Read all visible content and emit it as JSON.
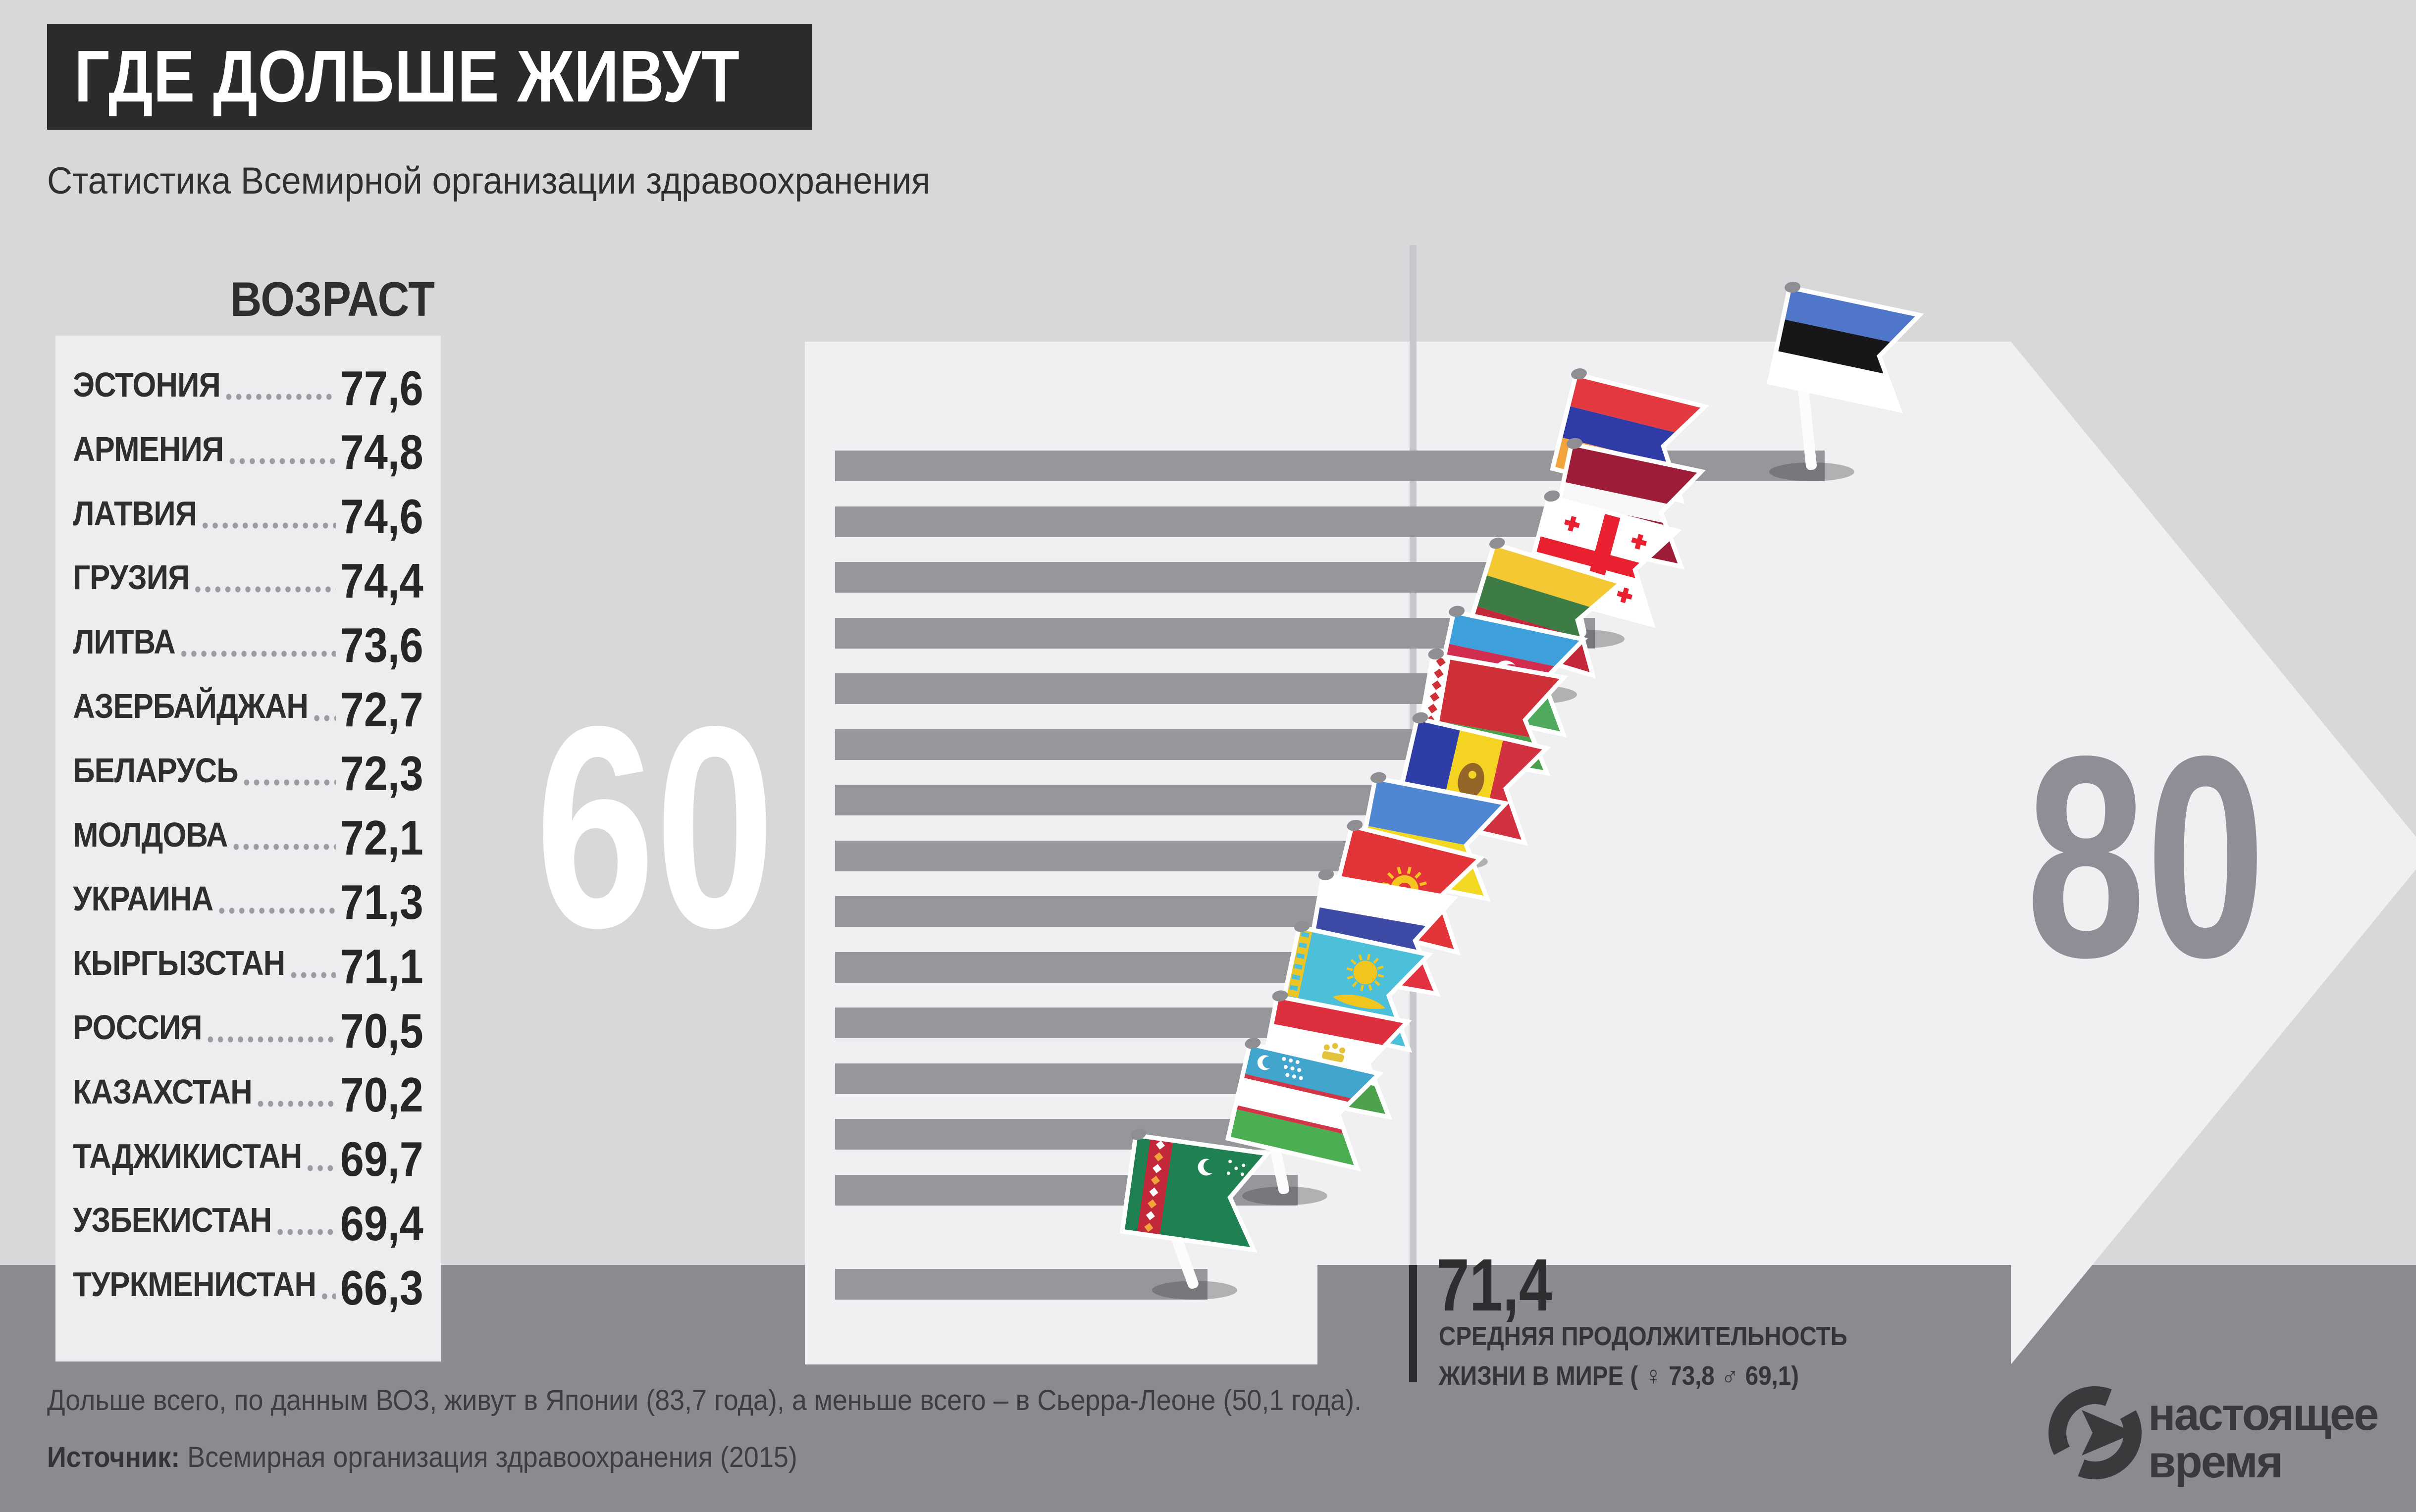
{
  "title": "ГДЕ ДОЛЬШЕ ЖИВУТ",
  "subtitle": "Статистика Всемирной организации здравоохранения",
  "age_header": "ВОЗРАСТ",
  "axis": {
    "min": "60",
    "max": "80"
  },
  "mean": {
    "value": "71,4",
    "line1": "СРЕДНЯЯ ПРОДОЛЖИТЕЛЬНОСТЬ",
    "line2": "ЖИЗНИ В МИРЕ ( ♀ 73,8   ♂ 69,1)"
  },
  "footer": {
    "note": "Дольше всего, по данным ВОЗ, живут в Японии (83,7 года), а меньше всего – в Сьерра-Леоне (50,1 года).",
    "source_label": "Источник:",
    "source_text": " Всемирная организация здравоохранения (2015)"
  },
  "logo": {
    "line1": "настоящее",
    "line2": "время"
  },
  "colors": {
    "background": "#d8d8da",
    "band": "#8b8b8f",
    "panel": "#ededef",
    "arrow_panel": "#f0f0f2",
    "bar": "#97979b",
    "title_box": "#2b2b2d",
    "text_dark": "#2e2e30",
    "mean_line_light": "#c8c8cc",
    "mean_line_dark": "#2d2d2f",
    "numeral_60": "#ffffff",
    "numeral_80": "#8e8e96"
  },
  "countries": [
    {
      "key": "estonia",
      "name": "ЭСТОНИЯ",
      "value": "77,6",
      "num": 77.6,
      "flag": {
        "dir": "h",
        "stripes": [
          {
            "c": "#4f76c9",
            "r": 1
          },
          {
            "c": "#17171a",
            "r": 1
          },
          {
            "c": "#ffffff",
            "r": 1
          }
        ]
      }
    },
    {
      "key": "armenia",
      "name": "АРМЕНИЯ",
      "value": "74,8",
      "num": 74.8,
      "flag": {
        "dir": "h",
        "stripes": [
          {
            "c": "#e23a40",
            "r": 1
          },
          {
            "c": "#2f3ba6",
            "r": 1
          },
          {
            "c": "#f2a33c",
            "r": 1
          }
        ]
      }
    },
    {
      "key": "latvia",
      "name": "ЛАТВИЯ",
      "value": "74,6",
      "num": 74.6,
      "flag": {
        "dir": "h",
        "stripes": [
          {
            "c": "#9d1c37",
            "r": 2
          },
          {
            "c": "#f7f7f7",
            "r": 1
          },
          {
            "c": "#9d1c37",
            "r": 2
          }
        ]
      }
    },
    {
      "key": "georgia",
      "name": "ГРУЗИЯ",
      "value": "74,4",
      "num": 74.4,
      "flag": {
        "dir": "h",
        "stripes": [
          {
            "c": "#ffffff",
            "r": 1
          }
        ],
        "extra": "georgia",
        "extraColor": "#e8202f"
      }
    },
    {
      "key": "lithuania",
      "name": "ЛИТВА",
      "value": "73,6",
      "num": 73.6,
      "flag": {
        "dir": "h",
        "stripes": [
          {
            "c": "#f4c832",
            "r": 1
          },
          {
            "c": "#3e7c46",
            "r": 1
          },
          {
            "c": "#c3273a",
            "r": 1
          }
        ]
      }
    },
    {
      "key": "azerbaijan",
      "name": "АЗЕРБАЙДЖАН",
      "value": "72,7",
      "num": 72.7,
      "flag": {
        "dir": "h",
        "stripes": [
          {
            "c": "#3ea0da",
            "r": 1
          },
          {
            "c": "#d02d50",
            "r": 1
          },
          {
            "c": "#50aa5e",
            "r": 1
          }
        ],
        "extra": "azerbaijan"
      }
    },
    {
      "key": "belarus",
      "name": "БЕЛАРУСЬ",
      "value": "72,3",
      "num": 72.3,
      "flag": {
        "dir": "h",
        "stripes": [
          {
            "c": "#cf3038",
            "r": 2
          },
          {
            "c": "#4ba04e",
            "r": 1
          }
        ],
        "extra": "belarus",
        "extraColor": "#cf3038"
      }
    },
    {
      "key": "moldova",
      "name": "МОЛДОВА",
      "value": "72,1",
      "num": 72.1,
      "flag": {
        "dir": "v",
        "stripes": [
          {
            "c": "#2e3ea6",
            "r": 1
          },
          {
            "c": "#f4d322",
            "r": 1
          },
          {
            "c": "#d23140",
            "r": 1
          }
        ],
        "extra": "moldova",
        "extraColor": "#8a5a28"
      }
    },
    {
      "key": "ukraine",
      "name": "УКРАИНА",
      "value": "71,3",
      "num": 71.3,
      "flag": {
        "dir": "h",
        "stripes": [
          {
            "c": "#4f87d3",
            "r": 1
          },
          {
            "c": "#f2d823",
            "r": 1
          }
        ]
      }
    },
    {
      "key": "kyrgyzstan",
      "name": "КЫРГЫЗСТАН",
      "value": "71,1",
      "num": 71.1,
      "flag": {
        "dir": "h",
        "stripes": [
          {
            "c": "#e23439",
            "r": 1
          }
        ],
        "extra": "sun",
        "extraColor": "#f4c61e"
      }
    },
    {
      "key": "russia",
      "name": "РОССИЯ",
      "value": "70,5",
      "num": 70.5,
      "flag": {
        "dir": "h",
        "stripes": [
          {
            "c": "#ffffff",
            "r": 1
          },
          {
            "c": "#3d4ba6",
            "r": 1
          },
          {
            "c": "#e23140",
            "r": 1
          }
        ]
      }
    },
    {
      "key": "kazakhstan",
      "name": "КАЗАХСТАН",
      "value": "70,2",
      "num": 70.2,
      "flag": {
        "dir": "h",
        "stripes": [
          {
            "c": "#4cc0d8",
            "r": 1
          }
        ],
        "extra": "kz",
        "extraColor": "#f2c51e"
      }
    },
    {
      "key": "tajikistan",
      "name": "ТАДЖИКИСТАН",
      "value": "69,7",
      "num": 69.7,
      "flag": {
        "dir": "h",
        "stripes": [
          {
            "c": "#de2f3f",
            "r": 2
          },
          {
            "c": "#ffffff",
            "r": 3
          },
          {
            "c": "#4fa24d",
            "r": 2
          }
        ],
        "extra": "tj",
        "extraColor": "#e3c23c"
      }
    },
    {
      "key": "uzbekistan",
      "name": "УЗБЕКИСТАН",
      "value": "69,4",
      "num": 69.4,
      "flag": {
        "dir": "h",
        "stripes": [
          {
            "c": "#41a5ce",
            "r": 30
          },
          {
            "c": "#d23545",
            "r": 4
          },
          {
            "c": "#ffffff",
            "r": 28
          },
          {
            "c": "#d23545",
            "r": 4
          },
          {
            "c": "#4cae52",
            "r": 30
          }
        ],
        "extra": "uz"
      }
    },
    {
      "key": "turkmenistan",
      "name": "ТУРКМЕНИСТАН",
      "value": "66,3",
      "num": 66.3,
      "flag": {
        "dir": "h",
        "stripes": [
          {
            "c": "#1f8152",
            "r": 1
          }
        ],
        "extra": "tm",
        "extraColor": "#c22839"
      }
    }
  ],
  "chart_data": {
    "type": "bar",
    "orientation": "horizontal",
    "title": "ГДЕ ДОЛЬШЕ ЖИВУТ",
    "subtitle": "Статистика Всемирной организации здравоохранения",
    "categories": [
      "ЭСТОНИЯ",
      "АРМЕНИЯ",
      "ЛАТВИЯ",
      "ГРУЗИЯ",
      "ЛИТВА",
      "АЗЕРБАЙДЖАН",
      "БЕЛАРУСЬ",
      "МОЛДОВА",
      "УКРАИНА",
      "КЫРГЫЗСТАН",
      "РОССИЯ",
      "КАЗАХСТАН",
      "ТАДЖИКИСТАН",
      "УЗБЕКИСТАН",
      "ТУРКМЕНИСТАН"
    ],
    "values": [
      77.6,
      74.8,
      74.6,
      74.4,
      73.6,
      72.7,
      72.3,
      72.1,
      71.3,
      71.1,
      70.5,
      70.2,
      69.7,
      69.4,
      66.3
    ],
    "xlabel": "ВОЗРАСТ",
    "ylabel": "",
    "xlim": [
      60,
      80
    ],
    "reference_line": {
      "value": 71.4,
      "label": "СРЕДНЯЯ ПРОДОЛЖИТЕЛЬНОСТЬ ЖИЗНИ В МИРЕ",
      "female": 73.8,
      "male": 69.1
    },
    "annotations": {
      "max_country": "Япония",
      "max_value": 83.7,
      "min_country": "Сьерра-Леоне",
      "min_value": 50.1
    },
    "source": "Всемирная организация здравоохранения (2015)",
    "legend_position": "none",
    "grid": false
  }
}
